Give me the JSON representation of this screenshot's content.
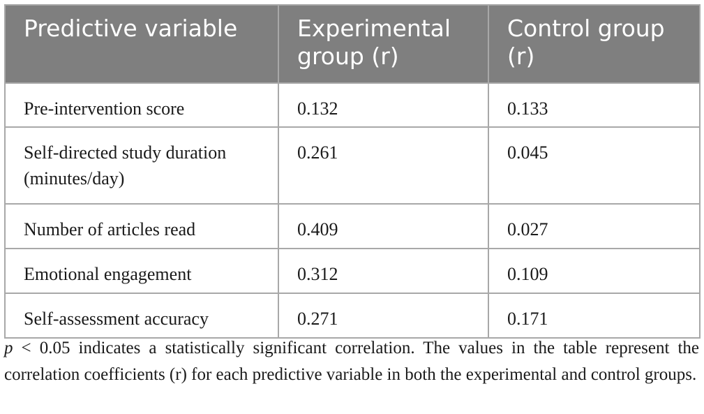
{
  "table": {
    "headers": [
      "Predictive variable",
      "Experimental group (r)",
      "Control group (r)"
    ],
    "rows": [
      [
        "Pre-intervention score",
        "0.132",
        "0.133"
      ],
      [
        "Self-directed study duration (minutes/day)",
        "0.261",
        "0.045"
      ],
      [
        "Number of articles read",
        "0.409",
        "0.027"
      ],
      [
        "Emotional engagement",
        "0.312",
        "0.109"
      ],
      [
        "Self-assessment accuracy",
        "0.271",
        "0.171"
      ]
    ]
  },
  "footnote": {
    "p_symbol": "p",
    "text": " < 0.05 indicates a statistically significant correlation. The values in the table represent the correlation coefficients (r) for each predictive variable in both the experimental and control groups."
  }
}
